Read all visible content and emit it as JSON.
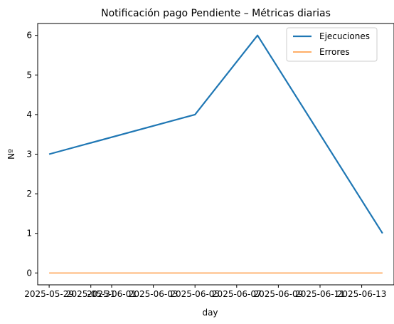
{
  "chart_data": {
    "type": "line",
    "title": "Notificación pago Pendiente – Métricas diarias",
    "xlabel": "day",
    "ylabel": "Nº",
    "x": [
      "2025-05-29",
      "2025-06-05",
      "2025-06-08",
      "2025-06-14"
    ],
    "series": [
      {
        "name": "Ejecuciones",
        "values": [
          3,
          4,
          6,
          1
        ],
        "color": "#1f77b4"
      },
      {
        "name": "Errores",
        "values": [
          0,
          0,
          0,
          0
        ],
        "color": "#ff7f0e"
      }
    ],
    "xticks": [
      "2025-05-29",
      "2025-05-31",
      "2025-06-01",
      "2025-06-03",
      "2025-06-05",
      "2025-06-07",
      "2025-06-09",
      "2025-06-11",
      "2025-06-13"
    ],
    "yticks": [
      0,
      1,
      2,
      3,
      4,
      5,
      6
    ],
    "ylim": [
      -0.3,
      6.3
    ],
    "xlim": [
      "2025-05-28T10:48",
      "2025-06-14T13:12"
    ],
    "grid": false,
    "legend": "top-right"
  }
}
